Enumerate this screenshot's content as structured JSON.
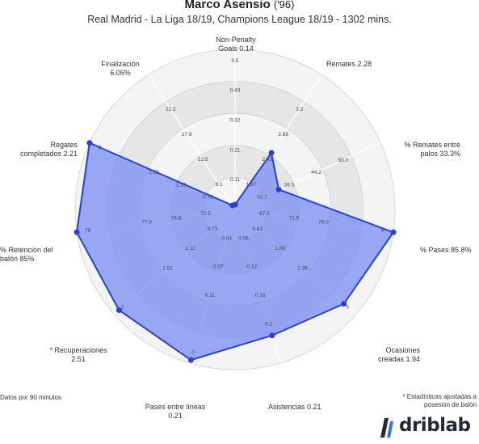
{
  "header": {
    "player": "Marco Asensio",
    "year": "('96)",
    "subtitle": "Real Madrid - La Liga 18/19, Champions League 18/19 - 1302 mins."
  },
  "footnotes": {
    "left": "Datos por 90 minutos",
    "right": "* Estadísticas ajustadas a posesión de balón"
  },
  "brand": {
    "name": "driblab"
  },
  "colors": {
    "fill": "#6f86f2",
    "stroke": "#2a3fd6",
    "ring_dark": "#e6e6e6",
    "ring_light": "#f4f4f4",
    "brand_dark": "#1f2b3b",
    "brand_blue": "#3a6fd8"
  },
  "chart_data": {
    "type": "radar",
    "rings": 4,
    "axes": [
      {
        "label": "Non-Penalty Goals 0.14",
        "value": 0.14,
        "ticks": [
          "0.11",
          "0.21",
          "0.32",
          "0.43",
          "0.5"
        ]
      },
      {
        "label": "Remates 2.28",
        "value": 2.28,
        "ticks": [
          "1.97",
          "2.42",
          "2.88",
          "3.3",
          ""
        ]
      },
      {
        "label": "% Remates entre palos 33.3%",
        "value": 33.3,
        "ticks": [
          "32.7",
          "38.5",
          "44.2",
          "50.0",
          ""
        ]
      },
      {
        "label": "% Pases 85.8%",
        "value": 85.8,
        "ticks": [
          "67.1",
          "71.5",
          "76.0",
          "",
          "4"
        ]
      },
      {
        "label": "Ocasiones creadas 1.94",
        "value": 1.94,
        "ticks": [
          "0.81",
          "1.09",
          "1.36",
          "",
          "5"
        ]
      },
      {
        "label": "Asistencias 0.21",
        "value": 0.21,
        "ticks": [
          "0.06",
          "0.12",
          "0.16",
          "0.2",
          ""
        ]
      },
      {
        "label": "Pases entre líneas 0.21",
        "value": 0.21,
        "ticks": [
          "0.04",
          "0.07",
          "0.11",
          "",
          "0"
        ]
      },
      {
        "label": "* Recuperaciones 2.51",
        "value": 2.51,
        "ticks": [
          "0.73",
          "1.12",
          "1.51",
          "",
          "1"
        ]
      },
      {
        "label": "% Retención del balón 85%",
        "value": 85,
        "ticks": [
          "72.5",
          "74.8",
          "77.0",
          "",
          "79"
        ]
      },
      {
        "label": "Regates completados 2.21",
        "value": 2.21,
        "ticks": [
          "0.72",
          "1.13",
          "1.55",
          "",
          "2"
        ]
      },
      {
        "label": "Finalización 6.06%",
        "value": 6.06,
        "ticks": [
          "9.1",
          "13.5",
          "17.9",
          "22.2",
          ""
        ]
      }
    ],
    "normalized": [
      0.03,
      0.42,
      0.3,
      1.0,
      0.9,
      0.82,
      0.98,
      0.96,
      1.0,
      1.0,
      0.03
    ]
  }
}
